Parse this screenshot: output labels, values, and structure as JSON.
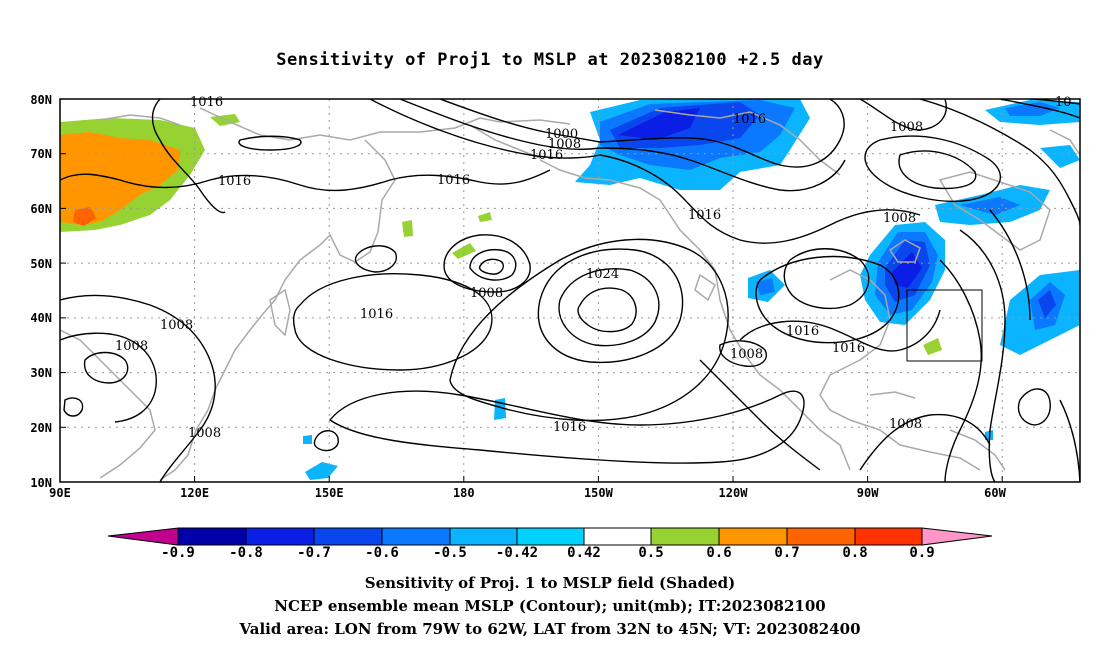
{
  "title": "Sensitivity of Proj1 to MSLP at 2023082100 +2.5 day",
  "lat_labels": [
    "80N",
    "70N",
    "60N",
    "50N",
    "40N",
    "30N",
    "20N",
    "10N"
  ],
  "lon_labels": [
    "90E",
    "120E",
    "150E",
    "180",
    "150W",
    "120W",
    "90W",
    "60W"
  ],
  "contour_labels": [
    "1016",
    "1000",
    "1008",
    "1016",
    "1016",
    "1016",
    "1016",
    "1024",
    "1008",
    "1016",
    "1008",
    "1008",
    "1016",
    "1016",
    "1008",
    "1008",
    "1016",
    "1008",
    "1008",
    "1016",
    "1008",
    "10"
  ],
  "colorbar": {
    "labels": [
      "-0.9",
      "-0.8",
      "-0.7",
      "-0.6",
      "-0.5",
      "-0.42",
      "0.42",
      "0.5",
      "0.6",
      "0.7",
      "0.8",
      "0.9"
    ],
    "colors": [
      "#c2008e",
      "#0000a8",
      "#0a1ee6",
      "#0a46ee",
      "#0a78ff",
      "#0ab4ff",
      "#00d2ff",
      "#ffffff",
      "#96d232",
      "#ff9600",
      "#ff6400",
      "#ff3200",
      "#ff0000",
      "#ff96c8"
    ]
  },
  "captions": [
    "Sensitivity of Proj. 1 to MSLP field (Shaded)",
    "NCEP ensemble mean MSLP (Contour); unit(mb); IT:2023082100",
    "Valid area: LON from 79W to 62W, LAT from 32N to 45N; VT: 2023082400"
  ],
  "valid_area": {
    "lon_min_w": 79,
    "lon_max_w": 62,
    "lat_min_n": 32,
    "lat_max_n": 45
  }
}
